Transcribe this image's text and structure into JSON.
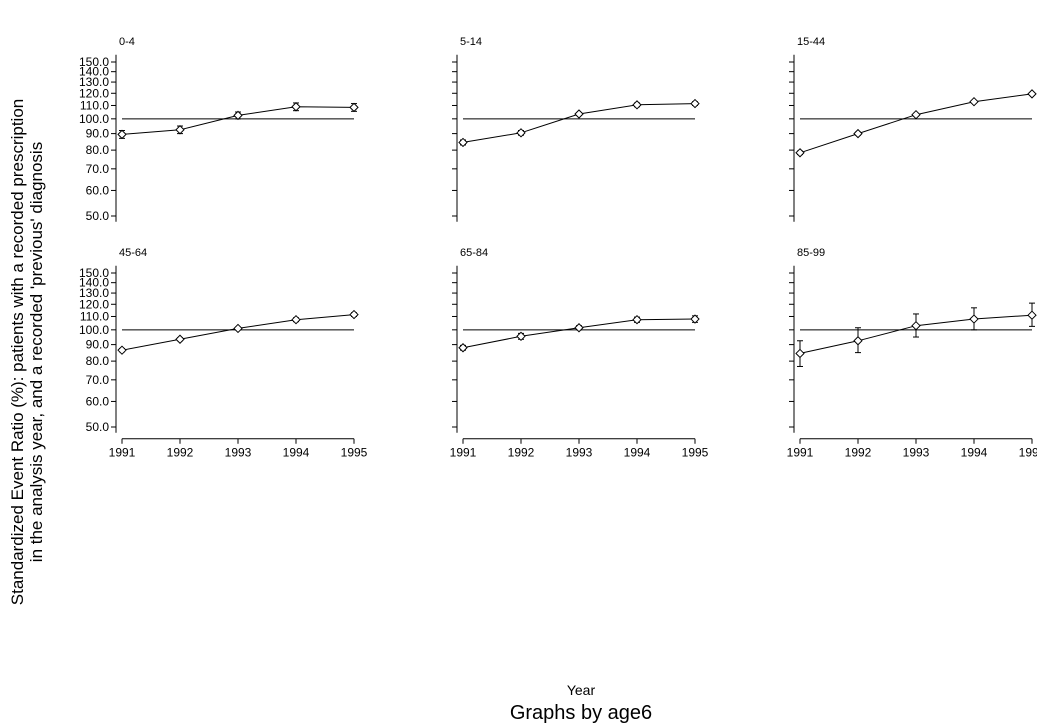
{
  "chart_data": {
    "type": "line",
    "ylabel_line1": "Standardized Event Ratio (%): patients with a recorded prescription",
    "ylabel_line2": "in the analysis year, and a recorded 'previous' diagnosis",
    "xlabel": "Year",
    "caption": "Graphs by age6",
    "x": [
      1991,
      1992,
      1993,
      1994,
      1995
    ],
    "x_tick_labels": [
      "1991",
      "1992",
      "1993",
      "1994",
      "1995"
    ],
    "y_ticks": [
      50,
      60,
      70,
      80,
      90,
      100,
      110,
      120,
      130,
      140,
      150
    ],
    "y_tick_labels": [
      "50.0",
      "60.0",
      "70.0",
      "80.0",
      "90.0",
      "100.0",
      "110.0",
      "120.0",
      "130.0",
      "140.0",
      "150.0"
    ],
    "y_scale": "log",
    "ylim": [
      48,
      158
    ],
    "reference_line": 100,
    "grid": false,
    "panels": [
      {
        "title": "0-4",
        "values": [
          89.5,
          92.5,
          102.5,
          109,
          108.5
        ],
        "lower": [
          87,
          90,
          100,
          106,
          105.5
        ],
        "upper": [
          92,
          95,
          105,
          112,
          111.5
        ]
      },
      {
        "title": "5-14",
        "values": [
          84.5,
          90.5,
          103.5,
          110.5,
          111.5
        ],
        "lower": [
          83,
          89,
          102.5,
          109,
          110
        ],
        "upper": [
          86,
          92,
          104.5,
          112,
          113
        ]
      },
      {
        "title": "15-44",
        "values": [
          78.5,
          90,
          103,
          113,
          119.5
        ],
        "lower": [
          77.5,
          89,
          102,
          112,
          118.5
        ],
        "upper": [
          79.5,
          91,
          104,
          114,
          120.5
        ]
      },
      {
        "title": "45-64",
        "values": [
          86.5,
          93.5,
          101,
          107.5,
          111.5
        ],
        "lower": [
          85.5,
          92.5,
          100,
          106,
          110
        ],
        "upper": [
          87.5,
          94.5,
          102,
          109,
          113
        ]
      },
      {
        "title": "65-84",
        "values": [
          88,
          95.5,
          101.5,
          107.5,
          108
        ],
        "lower": [
          86.5,
          93.5,
          100,
          105.5,
          105.5
        ],
        "upper": [
          89.5,
          97.5,
          103,
          109.5,
          110.5
        ]
      },
      {
        "title": "85-99",
        "values": [
          84.5,
          92.5,
          103,
          108,
          111
        ],
        "lower": [
          77,
          85,
          95,
          100,
          102.5
        ],
        "upper": [
          92.5,
          101.5,
          112,
          117,
          121
        ]
      }
    ]
  }
}
